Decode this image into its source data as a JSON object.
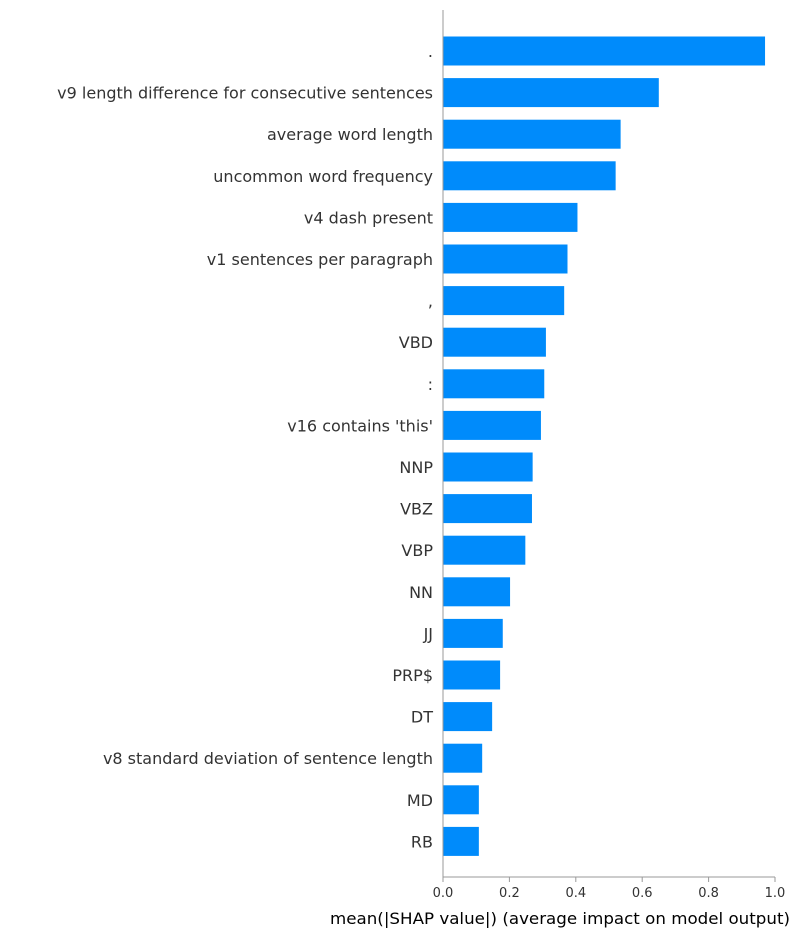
{
  "chart_data": {
    "type": "bar",
    "orientation": "horizontal",
    "categories": [
      ".",
      "v9 length difference for consecutive sentences",
      "average word length",
      "uncommon word frequency",
      "v4 dash present",
      "v1 sentences per paragraph",
      ",",
      "VBD",
      ":",
      "v16 contains 'this'",
      "NNP",
      "VBZ",
      "VBP",
      "NN",
      "JJ",
      "PRP$",
      "DT",
      "v8 standard deviation of sentence length",
      "MD",
      "RB"
    ],
    "values": [
      0.97,
      0.65,
      0.535,
      0.52,
      0.405,
      0.375,
      0.365,
      0.31,
      0.305,
      0.295,
      0.27,
      0.268,
      0.248,
      0.202,
      0.18,
      0.172,
      0.148,
      0.118,
      0.108,
      0.108
    ],
    "xlabel": "mean(|SHAP value|) (average impact on model output)",
    "ylabel": "",
    "xlim": [
      0,
      1.0
    ],
    "xticks": [
      "0.0",
      "0.2",
      "0.4",
      "0.6",
      "0.8",
      "1.0"
    ],
    "bar_color": "#008bfb",
    "grid": false,
    "legend": "none"
  }
}
